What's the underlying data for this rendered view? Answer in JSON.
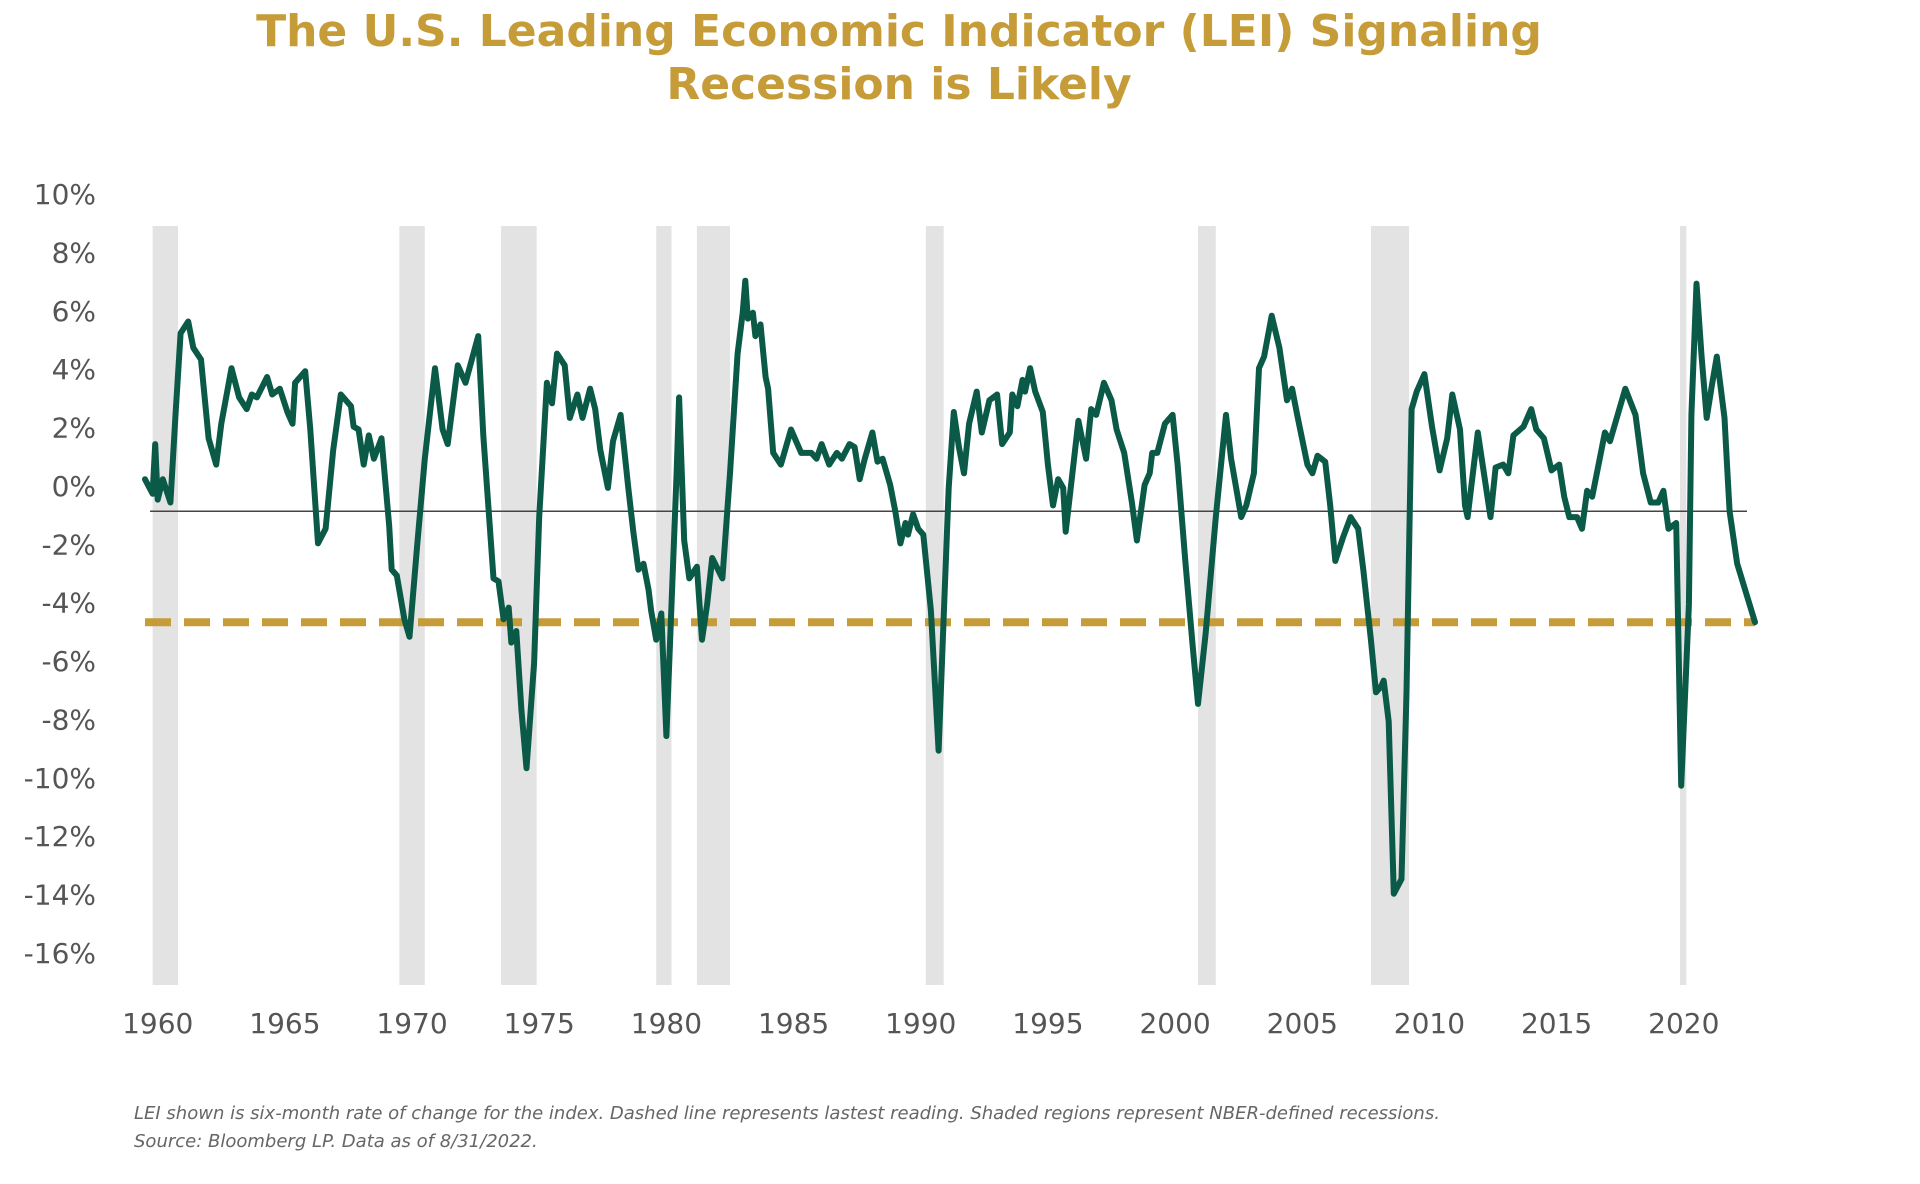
{
  "chart_data": {
    "type": "line",
    "title": [
      "The U.S. Leading Economic Indicator (LEI) Signaling",
      "Recession is Likely"
    ],
    "footnotes": [
      "LEI shown is six-month rate of change for the index. Dashed line represents lastest reading. Shaded regions represent NBER-defined recessions.",
      "Source: Bloomberg LP. Data as of 8/31/2022."
    ],
    "color": "#0b5a48",
    "x": [
      1959.5,
      1959.8,
      1959.9,
      1960.0,
      1960.2,
      1960.5,
      1960.7,
      1960.9,
      1961.2,
      1961.4,
      1961.7,
      1962.0,
      1962.3,
      1962.5,
      1962.9,
      1963.2,
      1963.5,
      1963.7,
      1963.9,
      1964.3,
      1964.5,
      1964.8,
      1965.1,
      1965.3,
      1965.4,
      1965.8,
      1966.0,
      1966.3,
      1966.6,
      1966.9,
      1967.2,
      1967.6,
      1967.7,
      1967.9,
      1968.1,
      1968.3,
      1968.5,
      1968.8,
      1969.1,
      1969.2,
      1969.4,
      1969.7,
      1969.9,
      1970.2,
      1970.5,
      1970.9,
      1971.2,
      1971.4,
      1971.8,
      1972.1,
      1972.6,
      1972.8,
      1973.2,
      1973.4,
      1973.6,
      1973.8,
      1973.9,
      1974.1,
      1974.3,
      1974.5,
      1974.8,
      1975.0,
      1975.3,
      1975.5,
      1975.7,
      1976.0,
      1976.2,
      1976.5,
      1976.7,
      1977.0,
      1977.2,
      1977.4,
      1977.7,
      1977.9,
      1978.2,
      1978.5,
      1978.7,
      1978.9,
      1979.1,
      1979.3,
      1979.4,
      1979.6,
      1979.8,
      1980.0,
      1980.2,
      1980.4,
      1980.5,
      1980.7,
      1980.9,
      1981.2,
      1981.4,
      1981.6,
      1981.8,
      1982.2,
      1982.5,
      1982.8,
      1983.0,
      1983.1,
      1983.2,
      1983.4,
      1983.5,
      1983.7,
      1983.9,
      1984.0,
      1984.2,
      1984.5,
      1984.9,
      1985.3,
      1985.7,
      1985.9,
      1986.1,
      1986.4,
      1986.7,
      1986.9,
      1987.2,
      1987.4,
      1987.6,
      1987.8,
      1988.1,
      1988.3,
      1988.5,
      1988.8,
      1989.0,
      1989.2,
      1989.4,
      1989.5,
      1989.7,
      1989.9,
      1990.1,
      1990.4,
      1990.7,
      1990.9,
      1991.1,
      1991.3,
      1991.5,
      1991.7,
      1991.9,
      1992.2,
      1992.4,
      1992.7,
      1993.0,
      1993.2,
      1993.5,
      1993.6,
      1993.8,
      1994.0,
      1994.1,
      1994.3,
      1994.5,
      1994.8,
      1995.0,
      1995.2,
      1995.4,
      1995.6,
      1995.7,
      1996.0,
      1996.2,
      1996.5,
      1996.7,
      1996.9,
      1997.2,
      1997.5,
      1997.7,
      1998.0,
      1998.3,
      1998.5,
      1998.8,
      1999.0,
      1999.1,
      1999.3,
      1999.6,
      1999.9,
      2000.1,
      2000.4,
      2000.7,
      2000.9,
      2001.2,
      2001.6,
      2002.0,
      2002.2,
      2002.6,
      2002.8,
      2003.1,
      2003.3,
      2003.5,
      2003.8,
      2004.1,
      2004.4,
      2004.6,
      2004.8,
      2005.2,
      2005.4,
      2005.6,
      2005.9,
      2006.1,
      2006.3,
      2006.6,
      2006.9,
      2007.2,
      2007.4,
      2007.7,
      2007.9,
      2008.1,
      2008.2,
      2008.4,
      2008.6,
      2008.9,
      2009.1,
      2009.3,
      2009.5,
      2009.8,
      2010.1,
      2010.4,
      2010.7,
      2010.9,
      2011.2,
      2011.4,
      2011.5,
      2011.9,
      2012.4,
      2012.6,
      2012.9,
      2013.1,
      2013.3,
      2013.7,
      2014.0,
      2014.2,
      2014.5,
      2014.8,
      2015.1,
      2015.3,
      2015.5,
      2015.8,
      2016.0,
      2016.2,
      2016.4,
      2016.9,
      2017.1,
      2017.7,
      2018.1,
      2018.4,
      2018.7,
      2019.0,
      2019.2,
      2019.4,
      2019.7,
      2019.9,
      2020.2,
      2020.3,
      2020.5,
      2020.7,
      2020.9,
      2021.1,
      2021.3,
      2021.6,
      2021.7,
      2021.8,
      2022.1,
      2022.8
    ],
    "values": [
      0.3,
      -0.2,
      1.5,
      -0.4,
      0.3,
      -0.5,
      2.5,
      5.3,
      5.7,
      4.8,
      4.4,
      1.7,
      0.8,
      2.2,
      4.1,
      3.1,
      2.7,
      3.2,
      3.1,
      3.8,
      3.2,
      3.4,
      2.6,
      2.2,
      3.6,
      4.0,
      2.0,
      -1.9,
      -1.4,
      1.3,
      3.2,
      2.8,
      2.1,
      2.0,
      0.8,
      1.8,
      1.0,
      1.7,
      -1.3,
      -2.8,
      -3.0,
      -4.5,
      -5.1,
      -2.0,
      1.0,
      4.1,
      2.0,
      1.5,
      4.2,
      3.6,
      5.2,
      1.8,
      -3.1,
      -3.2,
      -4.5,
      -4.1,
      -5.3,
      -4.9,
      -7.6,
      -9.6,
      -6.0,
      -1.0,
      3.6,
      2.9,
      4.6,
      4.2,
      2.4,
      3.2,
      2.4,
      3.4,
      2.7,
      1.3,
      0.0,
      1.6,
      2.5,
      0.0,
      -1.5,
      -2.8,
      -2.6,
      -3.5,
      -4.2,
      -5.2,
      -4.3,
      -8.5,
      -4.0,
      0.5,
      3.1,
      -1.8,
      -3.1,
      -2.7,
      -5.2,
      -4.0,
      -2.4,
      -3.1,
      0.5,
      4.6,
      6.0,
      7.1,
      5.8,
      6.0,
      5.2,
      5.6,
      3.8,
      3.4,
      1.2,
      0.8,
      2.0,
      1.2,
      1.2,
      1.0,
      1.5,
      0.8,
      1.2,
      1.0,
      1.5,
      1.4,
      0.3,
      1.0,
      1.9,
      0.9,
      1.0,
      0.1,
      -0.8,
      -1.9,
      -1.2,
      -1.6,
      -0.9,
      -1.4,
      -1.6,
      -4.2,
      -9.0,
      -4.5,
      0.0,
      2.6,
      1.4,
      0.5,
      2.2,
      3.3,
      1.9,
      3.0,
      3.2,
      1.5,
      1.9,
      3.2,
      2.8,
      3.7,
      3.3,
      4.1,
      3.3,
      2.6,
      0.8,
      -0.6,
      0.3,
      0.0,
      -1.5,
      0.8,
      2.3,
      1.0,
      2.7,
      2.5,
      3.6,
      3.0,
      2.0,
      1.2,
      -0.5,
      -1.8,
      0.1,
      0.5,
      1.2,
      1.2,
      2.2,
      2.5,
      0.8,
      -2.5,
      -5.5,
      -7.4,
      -5.0,
      -1.0,
      2.5,
      1.0,
      -1.0,
      -0.6,
      0.5,
      4.1,
      4.5,
      5.9,
      4.8,
      3.0,
      3.4,
      2.5,
      0.8,
      0.5,
      1.1,
      0.9,
      -0.6,
      -2.5,
      -1.7,
      -1.0,
      -1.4,
      -2.8,
      -5.2,
      -7.0,
      -6.8,
      -6.6,
      -8.0,
      -13.9,
      -13.4,
      -7.0,
      2.7,
      3.3,
      3.9,
      2.1,
      0.6,
      1.7,
      3.2,
      2.0,
      -0.6,
      -1.0,
      1.9,
      -1.0,
      0.7,
      0.8,
      0.5,
      1.8,
      2.1,
      2.7,
      2.0,
      1.7,
      0.6,
      0.8,
      -0.3,
      -1.0,
      -1.0,
      -1.4,
      -0.1,
      -0.3,
      1.9,
      1.6,
      3.4,
      2.5,
      0.5,
      -0.5,
      -0.5,
      -0.1,
      -1.4,
      -1.2,
      -10.2,
      -4.0,
      2.5,
      7.0,
      4.5,
      2.4,
      3.5,
      4.5,
      2.4,
      0.8,
      -0.8,
      -2.6,
      -4.6
    ],
    "recessions": [
      [
        1959.8,
        1960.8
      ],
      [
        1969.5,
        1970.5
      ],
      [
        1973.5,
        1974.9
      ],
      [
        1979.6,
        1980.2
      ],
      [
        1981.2,
        1982.5
      ],
      [
        1990.2,
        1990.9
      ],
      [
        2000.9,
        2001.6
      ],
      [
        2007.7,
        2009.2
      ],
      [
        2019.85,
        2020.1
      ]
    ],
    "recession_color": "#e3e3e3",
    "latest_reading": -4.6,
    "latest_color": "#c59c38",
    "baseline": -0.8,
    "xlim": [
      1959.5,
      2022.8
    ],
    "ylim": [
      -16,
      10
    ],
    "xticks": [
      1960,
      1965,
      1970,
      1975,
      1980,
      1985,
      1990,
      1995,
      2000,
      2005,
      2010,
      2015,
      2020
    ],
    "yticks": [
      {
        "value": 10,
        "label": "10%"
      },
      {
        "value": 8,
        "label": "8%"
      },
      {
        "value": 6,
        "label": "6%"
      },
      {
        "value": 4,
        "label": "4%"
      },
      {
        "value": 2,
        "label": "2%"
      },
      {
        "value": 0,
        "label": "0%"
      },
      {
        "value": -2,
        "label": "-2%"
      },
      {
        "value": -4,
        "label": "-4%"
      },
      {
        "value": -6,
        "label": "-6%"
      },
      {
        "value": -8,
        "label": "-8%"
      },
      {
        "value": -10,
        "label": "-10%"
      },
      {
        "value": -12,
        "label": "-12%"
      },
      {
        "value": -14,
        "label": "-14%"
      },
      {
        "value": -16,
        "label": "-16%"
      }
    ]
  }
}
